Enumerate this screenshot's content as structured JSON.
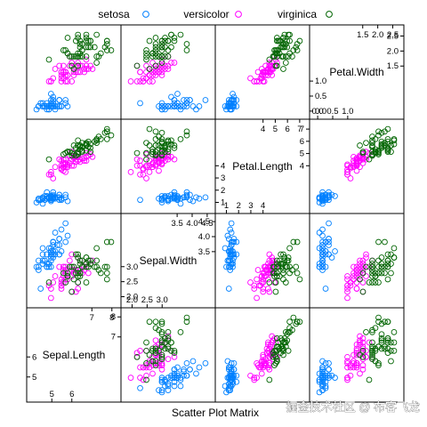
{
  "chart_data": {
    "type": "scatter",
    "subtype": "scatter-plot-matrix",
    "xlabel": "Scatter Plot Matrix",
    "watermark": "掘金技术社区 @ 布客飞龙",
    "legend_position": "top",
    "grid": false,
    "variables": [
      {
        "name": "Sepal.Length",
        "range": [
          4.3,
          7.9
        ],
        "upper_ticks": [
          "7",
          "8"
        ],
        "upper_tick_values": [
          7,
          8
        ],
        "lower_ticks": [
          "5",
          "6"
        ],
        "lower_tick_values": [
          5,
          6
        ],
        "extra_ticks": [
          "5",
          "6",
          "7",
          "8"
        ]
      },
      {
        "name": "Sepal.Width",
        "range": [
          2.0,
          4.4
        ],
        "upper_ticks": [
          "3.5",
          "4.0",
          "4.5"
        ],
        "upper_tick_values": [
          3.5,
          4.0,
          4.5
        ],
        "lower_ticks": [
          "2.0",
          "2.5",
          "3.0"
        ],
        "lower_tick_values": [
          2.0,
          2.5,
          3.0
        ],
        "extra_ticks": [
          "2.0",
          "2.5",
          "3.0",
          "3.5",
          "4.0",
          "4.5"
        ]
      },
      {
        "name": "Petal.Length",
        "range": [
          1.0,
          6.9
        ],
        "upper_ticks": [
          "4",
          "5",
          "6",
          "7"
        ],
        "upper_tick_values": [
          4,
          5,
          6,
          7
        ],
        "lower_ticks": [
          "1",
          "2",
          "3",
          "4"
        ],
        "lower_tick_values": [
          1,
          2,
          3,
          4
        ],
        "extra_ticks": [
          "1",
          "2",
          "3",
          "4",
          "5",
          "6",
          "7"
        ]
      },
      {
        "name": "Petal.Width",
        "range": [
          0.1,
          2.5
        ],
        "upper_ticks": [
          "1.5",
          "2.0",
          "2.5"
        ],
        "upper_tick_values": [
          1.5,
          2.0,
          2.5
        ],
        "lower_ticks": [
          "0.0",
          "0.5",
          "1.0"
        ],
        "lower_tick_values": [
          0.0,
          0.5,
          1.0
        ],
        "extra_ticks": [
          "0.0",
          "0.5",
          "1.0",
          "1.5",
          "2.0",
          "2.5"
        ]
      }
    ],
    "series": [
      {
        "name": "setosa",
        "color": "#0080ff",
        "points": [
          [
            5.1,
            3.5,
            1.4,
            0.2
          ],
          [
            4.9,
            3.0,
            1.4,
            0.2
          ],
          [
            4.7,
            3.2,
            1.3,
            0.2
          ],
          [
            4.6,
            3.1,
            1.5,
            0.2
          ],
          [
            5.0,
            3.6,
            1.4,
            0.2
          ],
          [
            5.4,
            3.9,
            1.7,
            0.4
          ],
          [
            4.6,
            3.4,
            1.4,
            0.3
          ],
          [
            5.0,
            3.4,
            1.5,
            0.2
          ],
          [
            4.4,
            2.9,
            1.4,
            0.2
          ],
          [
            4.9,
            3.1,
            1.5,
            0.1
          ],
          [
            5.4,
            3.7,
            1.5,
            0.2
          ],
          [
            4.8,
            3.4,
            1.6,
            0.2
          ],
          [
            4.8,
            3.0,
            1.4,
            0.1
          ],
          [
            4.3,
            3.0,
            1.1,
            0.1
          ],
          [
            5.8,
            4.0,
            1.2,
            0.2
          ],
          [
            5.7,
            4.4,
            1.5,
            0.4
          ],
          [
            5.4,
            3.9,
            1.3,
            0.4
          ],
          [
            5.1,
            3.5,
            1.4,
            0.3
          ],
          [
            5.7,
            3.8,
            1.7,
            0.3
          ],
          [
            5.1,
            3.8,
            1.5,
            0.3
          ],
          [
            5.4,
            3.4,
            1.7,
            0.2
          ],
          [
            5.1,
            3.7,
            1.5,
            0.4
          ],
          [
            4.6,
            3.6,
            1.0,
            0.2
          ],
          [
            5.1,
            3.3,
            1.7,
            0.5
          ],
          [
            4.8,
            3.4,
            1.9,
            0.2
          ],
          [
            5.0,
            3.0,
            1.6,
            0.2
          ],
          [
            5.0,
            3.4,
            1.6,
            0.4
          ],
          [
            5.2,
            3.5,
            1.5,
            0.2
          ],
          [
            5.2,
            3.4,
            1.4,
            0.2
          ],
          [
            4.7,
            3.2,
            1.6,
            0.2
          ],
          [
            4.8,
            3.1,
            1.6,
            0.2
          ],
          [
            5.4,
            3.4,
            1.5,
            0.4
          ],
          [
            5.2,
            4.1,
            1.5,
            0.1
          ],
          [
            5.5,
            4.2,
            1.4,
            0.2
          ],
          [
            4.9,
            3.1,
            1.5,
            0.2
          ],
          [
            5.0,
            3.2,
            1.2,
            0.2
          ],
          [
            5.5,
            3.5,
            1.3,
            0.2
          ],
          [
            4.9,
            3.6,
            1.4,
            0.1
          ],
          [
            4.4,
            3.0,
            1.3,
            0.2
          ],
          [
            5.1,
            3.4,
            1.5,
            0.2
          ],
          [
            5.0,
            3.5,
            1.3,
            0.3
          ],
          [
            4.5,
            2.3,
            1.3,
            0.3
          ],
          [
            4.4,
            3.2,
            1.3,
            0.2
          ],
          [
            5.0,
            3.5,
            1.6,
            0.6
          ],
          [
            5.1,
            3.8,
            1.9,
            0.4
          ],
          [
            4.8,
            3.0,
            1.4,
            0.3
          ],
          [
            5.1,
            3.8,
            1.6,
            0.2
          ],
          [
            4.6,
            3.2,
            1.4,
            0.2
          ],
          [
            5.3,
            3.7,
            1.5,
            0.2
          ],
          [
            5.0,
            3.3,
            1.4,
            0.2
          ]
        ]
      },
      {
        "name": "versicolor",
        "color": "#ff00ff",
        "points": [
          [
            7.0,
            3.2,
            4.7,
            1.4
          ],
          [
            6.4,
            3.2,
            4.5,
            1.5
          ],
          [
            6.9,
            3.1,
            4.9,
            1.5
          ],
          [
            5.5,
            2.3,
            4.0,
            1.3
          ],
          [
            6.5,
            2.8,
            4.6,
            1.5
          ],
          [
            5.7,
            2.8,
            4.5,
            1.3
          ],
          [
            6.3,
            3.3,
            4.7,
            1.6
          ],
          [
            4.9,
            2.4,
            3.3,
            1.0
          ],
          [
            6.6,
            2.9,
            4.6,
            1.3
          ],
          [
            5.2,
            2.7,
            3.9,
            1.4
          ],
          [
            5.0,
            2.0,
            3.5,
            1.0
          ],
          [
            5.9,
            3.0,
            4.2,
            1.5
          ],
          [
            6.0,
            2.2,
            4.0,
            1.0
          ],
          [
            6.1,
            2.9,
            4.7,
            1.4
          ],
          [
            5.6,
            2.9,
            3.6,
            1.3
          ],
          [
            6.7,
            3.1,
            4.4,
            1.4
          ],
          [
            5.6,
            3.0,
            4.5,
            1.5
          ],
          [
            5.8,
            2.7,
            4.1,
            1.0
          ],
          [
            6.2,
            2.2,
            4.5,
            1.5
          ],
          [
            5.6,
            2.5,
            3.9,
            1.1
          ],
          [
            5.9,
            3.2,
            4.8,
            1.8
          ],
          [
            6.1,
            2.8,
            4.0,
            1.3
          ],
          [
            6.3,
            2.5,
            4.9,
            1.5
          ],
          [
            6.1,
            2.8,
            4.7,
            1.2
          ],
          [
            6.4,
            2.9,
            4.3,
            1.3
          ],
          [
            6.6,
            3.0,
            4.4,
            1.4
          ],
          [
            6.8,
            2.8,
            4.8,
            1.4
          ],
          [
            6.7,
            3.0,
            5.0,
            1.7
          ],
          [
            6.0,
            2.9,
            4.5,
            1.5
          ],
          [
            5.7,
            2.6,
            3.5,
            1.0
          ],
          [
            5.5,
            2.4,
            3.8,
            1.1
          ],
          [
            5.5,
            2.4,
            3.7,
            1.0
          ],
          [
            5.8,
            2.7,
            3.9,
            1.2
          ],
          [
            6.0,
            2.7,
            5.1,
            1.6
          ],
          [
            5.4,
            3.0,
            4.5,
            1.5
          ],
          [
            6.0,
            3.4,
            4.5,
            1.6
          ],
          [
            6.7,
            3.1,
            4.7,
            1.5
          ],
          [
            6.3,
            2.3,
            4.4,
            1.3
          ],
          [
            5.6,
            3.0,
            4.1,
            1.3
          ],
          [
            5.5,
            2.5,
            4.0,
            1.3
          ],
          [
            5.5,
            2.6,
            4.4,
            1.2
          ],
          [
            6.1,
            3.0,
            4.6,
            1.4
          ],
          [
            5.8,
            2.6,
            4.0,
            1.2
          ],
          [
            5.0,
            2.3,
            3.3,
            1.0
          ],
          [
            5.6,
            2.7,
            4.2,
            1.3
          ],
          [
            5.7,
            3.0,
            4.2,
            1.2
          ],
          [
            5.7,
            2.9,
            4.2,
            1.3
          ],
          [
            6.2,
            2.9,
            4.3,
            1.3
          ],
          [
            5.1,
            2.5,
            3.0,
            1.1
          ],
          [
            5.7,
            2.8,
            4.1,
            1.3
          ]
        ]
      },
      {
        "name": "virginica",
        "color": "#006400",
        "points": [
          [
            6.3,
            3.3,
            6.0,
            2.5
          ],
          [
            5.8,
            2.7,
            5.1,
            1.9
          ],
          [
            7.1,
            3.0,
            5.9,
            2.1
          ],
          [
            6.3,
            2.9,
            5.6,
            1.8
          ],
          [
            6.5,
            3.0,
            5.8,
            2.2
          ],
          [
            7.6,
            3.0,
            6.6,
            2.1
          ],
          [
            4.9,
            2.5,
            4.5,
            1.7
          ],
          [
            7.3,
            2.9,
            6.3,
            1.8
          ],
          [
            6.7,
            2.5,
            5.8,
            1.8
          ],
          [
            7.2,
            3.6,
            6.1,
            2.5
          ],
          [
            6.5,
            3.2,
            5.1,
            2.0
          ],
          [
            6.4,
            2.7,
            5.3,
            1.9
          ],
          [
            6.8,
            3.0,
            5.5,
            2.1
          ],
          [
            5.7,
            2.5,
            5.0,
            2.0
          ],
          [
            5.8,
            2.8,
            5.1,
            2.4
          ],
          [
            6.4,
            3.2,
            5.3,
            2.3
          ],
          [
            6.5,
            3.0,
            5.5,
            1.8
          ],
          [
            7.7,
            3.8,
            6.7,
            2.2
          ],
          [
            7.7,
            2.6,
            6.9,
            2.3
          ],
          [
            6.0,
            2.2,
            5.0,
            1.5
          ],
          [
            6.9,
            3.2,
            5.7,
            2.3
          ],
          [
            5.6,
            2.8,
            4.9,
            2.0
          ],
          [
            7.7,
            2.8,
            6.7,
            2.0
          ],
          [
            6.3,
            2.7,
            4.9,
            1.8
          ],
          [
            6.7,
            3.3,
            5.7,
            2.1
          ],
          [
            7.2,
            3.2,
            6.0,
            1.8
          ],
          [
            6.2,
            2.8,
            4.8,
            1.8
          ],
          [
            6.1,
            3.0,
            4.9,
            1.8
          ],
          [
            6.4,
            2.8,
            5.6,
            2.1
          ],
          [
            7.2,
            3.0,
            5.8,
            1.6
          ],
          [
            7.4,
            2.8,
            6.1,
            1.9
          ],
          [
            7.9,
            3.8,
            6.4,
            2.0
          ],
          [
            6.4,
            2.8,
            5.6,
            2.2
          ],
          [
            6.3,
            2.8,
            5.1,
            1.5
          ],
          [
            6.1,
            2.6,
            5.6,
            1.4
          ],
          [
            7.7,
            3.0,
            6.1,
            2.3
          ],
          [
            6.3,
            3.4,
            5.6,
            2.4
          ],
          [
            6.4,
            3.1,
            5.5,
            1.8
          ],
          [
            6.0,
            3.0,
            4.8,
            1.8
          ],
          [
            6.9,
            3.1,
            5.4,
            2.1
          ],
          [
            6.7,
            3.1,
            5.6,
            2.4
          ],
          [
            6.9,
            3.1,
            5.1,
            2.3
          ],
          [
            5.8,
            2.7,
            5.1,
            1.9
          ],
          [
            6.8,
            3.2,
            5.9,
            2.3
          ],
          [
            6.7,
            3.3,
            5.7,
            2.5
          ],
          [
            6.7,
            3.0,
            5.2,
            2.3
          ],
          [
            6.3,
            2.5,
            5.0,
            1.9
          ],
          [
            6.5,
            3.0,
            5.2,
            2.0
          ],
          [
            6.2,
            3.4,
            5.4,
            2.3
          ],
          [
            5.9,
            3.0,
            5.1,
            1.8
          ]
        ]
      }
    ]
  }
}
